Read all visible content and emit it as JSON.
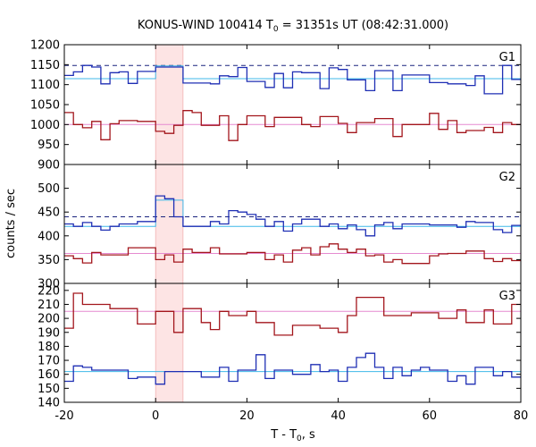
{
  "chart_data": {
    "type": "line",
    "title_prefix": "KONUS-WIND 100414 T",
    "title_sub": "0",
    "title_suffix": " = 31351s UT (08:42:31.000)",
    "xlabel_prefix": "T - T",
    "xlabel_sub": "0",
    "xlabel_suffix": ", s",
    "ylabel": "counts / sec",
    "xlim": [
      -20,
      80
    ],
    "x_ticks": [
      -20,
      0,
      20,
      40,
      60,
      80
    ],
    "shaded_interval": [
      0,
      6
    ],
    "colors": {
      "raw": "#1f2fb4",
      "background_level": "#3fb8e8",
      "threshold": "#1a237e",
      "second_channel": "#a3161c",
      "second_level": "#e58ad0",
      "shade": "#fde4e4"
    },
    "panels": [
      {
        "label": "G1",
        "ylim": [
          900,
          1200
        ],
        "y_ticks": [
          900,
          950,
          1000,
          1050,
          1100,
          1150,
          1200
        ],
        "threshold": 1148,
        "bin_edges": [
          -20,
          -18,
          -16,
          -14,
          -12,
          -10,
          -8,
          -6,
          -4,
          -2,
          0,
          2,
          4,
          6,
          8,
          10,
          12,
          14,
          16,
          18,
          20,
          22,
          24,
          26,
          28,
          30,
          32,
          34,
          36,
          38,
          40,
          42,
          44,
          46,
          48,
          50,
          52,
          54,
          56,
          58,
          60,
          62,
          64,
          66,
          68,
          70,
          72,
          74,
          76,
          78,
          80
        ],
        "series": [
          {
            "role": "raw",
            "values": [
              1123,
              1132,
              1148,
              1144,
              1102,
              1130,
              1132,
              1103,
              1133,
              1133,
              1144,
              1144,
              1144,
              1104,
              1104,
              1104,
              1102,
              1122,
              1120,
              1143,
              1108,
              1108,
              1093,
              1128,
              1092,
              1132,
              1130,
              1130,
              1090,
              1142,
              1138,
              1112,
              1112,
              1085,
              1135,
              1135,
              1085,
              1124,
              1124,
              1124,
              1105,
              1105,
              1102,
              1102,
              1098,
              1122,
              1077,
              1077,
              1148,
              1113
            ]
          },
          {
            "role": "background_level",
            "values": [
              1115,
              1115,
              1115,
              1115,
              1115,
              1115,
              1115,
              1115,
              1115,
              1115,
              1147,
              1147,
              1147,
              1115,
              1115,
              1115,
              1115,
              1115,
              1115,
              1115,
              1115,
              1115,
              1115,
              1115,
              1115,
              1115,
              1115,
              1115,
              1115,
              1115,
              1115,
              1115,
              1115,
              1115,
              1115,
              1115,
              1115,
              1115,
              1115,
              1115,
              1115,
              1115,
              1115,
              1115,
              1115,
              1115,
              1115,
              1115,
              1115,
              1115
            ]
          },
          {
            "role": "second_channel",
            "values": [
              1030,
              1000,
              992,
              1008,
              962,
              1002,
              1010,
              1010,
              1008,
              1008,
              983,
              978,
              998,
              1035,
              1030,
              998,
              998,
              1022,
              960,
              1000,
              1022,
              1022,
              995,
              1018,
              1018,
              1018,
              1000,
              995,
              1020,
              1020,
              1003,
              980,
              1005,
              1005,
              1015,
              1015,
              970,
              1000,
              1000,
              1000,
              1028,
              988,
              1010,
              980,
              985,
              985,
              993,
              980,
              1005,
              1000
            ]
          },
          {
            "role": "second_level",
            "values": [
              1000,
              1000,
              1000,
              1000,
              1000,
              1000,
              1000,
              1000,
              1000,
              1000,
              1000,
              1000,
              1000,
              1000,
              1000,
              1000,
              1000,
              1000,
              1000,
              1000,
              1000,
              1000,
              1000,
              1000,
              1000,
              1000,
              1000,
              1000,
              1000,
              1000,
              1000,
              1000,
              1000,
              1000,
              1000,
              1000,
              1000,
              1000,
              1000,
              1000,
              1000,
              1000,
              1000,
              1000,
              1000,
              1000,
              1000,
              1000,
              1000,
              1000
            ]
          }
        ]
      },
      {
        "label": "G2",
        "ylim": [
          300,
          550
        ],
        "y_ticks": [
          300,
          350,
          400,
          450,
          500
        ],
        "threshold": 440,
        "bin_edges": [
          -20,
          -18,
          -16,
          -14,
          -12,
          -10,
          -8,
          -6,
          -4,
          -2,
          0,
          2,
          4,
          6,
          8,
          10,
          12,
          14,
          16,
          18,
          20,
          22,
          24,
          26,
          28,
          30,
          32,
          34,
          36,
          38,
          40,
          42,
          44,
          46,
          48,
          50,
          52,
          54,
          56,
          58,
          60,
          62,
          64,
          66,
          68,
          70,
          72,
          74,
          76,
          78,
          80
        ],
        "series": [
          {
            "role": "raw",
            "values": [
              425,
              420,
              428,
              420,
              412,
              420,
              425,
              425,
              430,
              430,
              484,
              478,
              440,
              420,
              420,
              420,
              430,
              425,
              453,
              450,
              445,
              435,
              420,
              430,
              410,
              425,
              435,
              435,
              420,
              425,
              415,
              423,
              413,
              400,
              423,
              428,
              415,
              425,
              425,
              425,
              423,
              423,
              423,
              418,
              430,
              428,
              428,
              413,
              407,
              422
            ]
          },
          {
            "role": "background_level",
            "values": [
              420,
              420,
              420,
              420,
              420,
              420,
              420,
              420,
              420,
              420,
              475,
              475,
              475,
              420,
              420,
              420,
              420,
              420,
              420,
              420,
              420,
              420,
              420,
              420,
              420,
              420,
              420,
              420,
              420,
              420,
              420,
              420,
              420,
              420,
              420,
              420,
              420,
              420,
              420,
              420,
              420,
              420,
              420,
              420,
              420,
              420,
              420,
              420,
              420,
              420
            ]
          },
          {
            "role": "second_channel",
            "values": [
              358,
              352,
              343,
              365,
              360,
              360,
              360,
              375,
              375,
              375,
              350,
              360,
              345,
              372,
              365,
              365,
              375,
              362,
              362,
              362,
              365,
              365,
              350,
              360,
              345,
              370,
              375,
              360,
              377,
              383,
              372,
              365,
              372,
              358,
              360,
              345,
              350,
              342,
              342,
              342,
              358,
              362,
              363,
              363,
              368,
              368,
              352,
              346,
              352,
              348
            ]
          },
          {
            "role": "second_level",
            "values": [
              363,
              363,
              363,
              363,
              363,
              363,
              363,
              363,
              363,
              363,
              363,
              363,
              363,
              363,
              363,
              363,
              363,
              363,
              363,
              363,
              363,
              363,
              363,
              363,
              363,
              363,
              363,
              363,
              363,
              363,
              363,
              363,
              363,
              363,
              363,
              363,
              363,
              363,
              363,
              363,
              363,
              363,
              363,
              363,
              363,
              363,
              363,
              363,
              363,
              363
            ]
          }
        ]
      },
      {
        "label": "G3",
        "ylim": [
          140,
          225
        ],
        "y_ticks": [
          140,
          150,
          160,
          170,
          180,
          190,
          200,
          210,
          220
        ],
        "bin_edges": [
          -20,
          -18,
          -16,
          -14,
          -12,
          -10,
          -8,
          -6,
          -4,
          -2,
          0,
          2,
          4,
          6,
          8,
          10,
          12,
          14,
          16,
          18,
          20,
          22,
          24,
          26,
          28,
          30,
          32,
          34,
          36,
          38,
          40,
          42,
          44,
          46,
          48,
          50,
          52,
          54,
          56,
          58,
          60,
          62,
          64,
          66,
          68,
          70,
          72,
          74,
          76,
          78,
          80
        ],
        "series": [
          {
            "role": "raw",
            "values": [
              155,
              166,
              165,
              163,
              163,
              163,
              163,
              157,
              158,
              158,
              153,
              162,
              162,
              162,
              162,
              158,
              158,
              165,
              155,
              163,
              163,
              174,
              157,
              163,
              163,
              160,
              160,
              167,
              162,
              163,
              155,
              165,
              172,
              175,
              165,
              157,
              165,
              159,
              163,
              165,
              163,
              163,
              155,
              159,
              153,
              165,
              165,
              159,
              162,
              158
            ]
          },
          {
            "role": "background_level",
            "values": [
              162,
              162,
              162,
              162,
              162,
              162,
              162,
              162,
              162,
              162,
              162,
              162,
              162,
              162,
              162,
              162,
              162,
              162,
              162,
              162,
              162,
              162,
              162,
              162,
              162,
              162,
              162,
              162,
              162,
              162,
              162,
              162,
              162,
              162,
              162,
              162,
              162,
              162,
              162,
              162,
              162,
              162,
              162,
              162,
              162,
              162,
              162,
              162,
              162,
              162
            ]
          },
          {
            "role": "second_channel",
            "values": [
              193,
              218,
              210,
              210,
              210,
              207,
              207,
              207,
              196,
              196,
              205,
              205,
              190,
              207,
              207,
              197,
              192,
              205,
              202,
              202,
              205,
              197,
              197,
              188,
              188,
              195,
              195,
              195,
              193,
              193,
              190,
              202,
              215,
              215,
              215,
              202,
              202,
              202,
              204,
              204,
              204,
              200,
              200,
              206,
              197,
              197,
              206,
              196,
              196,
              210
            ]
          },
          {
            "role": "second_level",
            "values": [
              205,
              205,
              205,
              205,
              205,
              205,
              205,
              205,
              205,
              205,
              205,
              205,
              205,
              205,
              205,
              205,
              205,
              205,
              205,
              205,
              205,
              205,
              205,
              205,
              205,
              205,
              205,
              205,
              205,
              205,
              205,
              205,
              205,
              205,
              205,
              205,
              205,
              205,
              205,
              205,
              205,
              205,
              205,
              205,
              205,
              205,
              205,
              205,
              205,
              205
            ]
          }
        ]
      }
    ]
  }
}
